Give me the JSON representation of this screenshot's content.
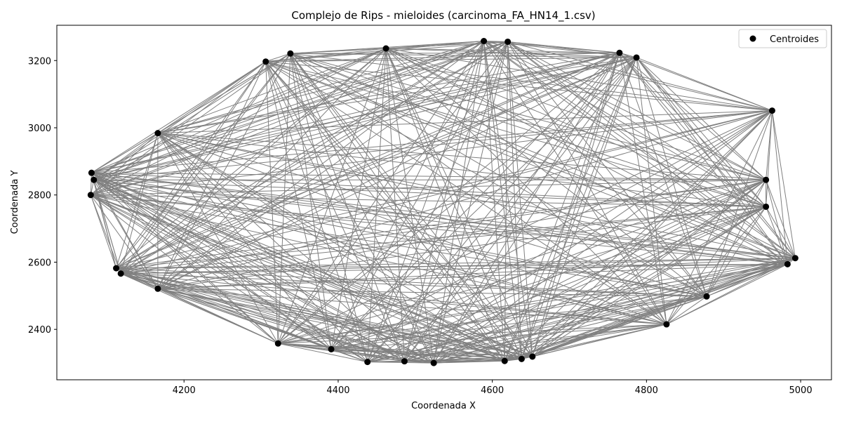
{
  "chart_data": {
    "type": "scatter",
    "title": "Complejo de Rips - mieloides (carcinoma_FA_HN14_1.csv)",
    "xlabel": "Coordenada X",
    "ylabel": "Coordenada Y",
    "xlim": [
      4035,
      5040
    ],
    "ylim": [
      2250,
      3305
    ],
    "xticks": [
      4200,
      4400,
      4600,
      4800,
      5000
    ],
    "yticks": [
      2400,
      2600,
      2800,
      3000,
      3200
    ],
    "grid": false,
    "legend_position": "upper right",
    "series": [
      {
        "name": "Centroides",
        "marker_color": "#000000",
        "x": [
          4079,
          4083,
          4080,
          4112,
          4118,
          4166,
          4166,
          4306,
          4338,
          4322,
          4391,
          4438,
          4462,
          4486,
          4524,
          4589,
          4616,
          4620,
          4638,
          4652,
          4765,
          4787,
          4826,
          4878,
          4955,
          4955,
          4963,
          4983,
          4993
        ],
        "y": [
          2800,
          2845,
          2866,
          2582,
          2566,
          2521,
          2984,
          3197,
          3221,
          2358,
          2341,
          2303,
          3236,
          2305,
          2300,
          3258,
          2306,
          3256,
          2312,
          2319,
          3223,
          3209,
          2415,
          2498,
          2845,
          2765,
          3051,
          2594,
          2612
        ]
      }
    ],
    "edges": {
      "color": "#808080",
      "description": "all pairs of centroids within the Rips radius are connected"
    }
  },
  "legend": {
    "label": "Centroides"
  }
}
